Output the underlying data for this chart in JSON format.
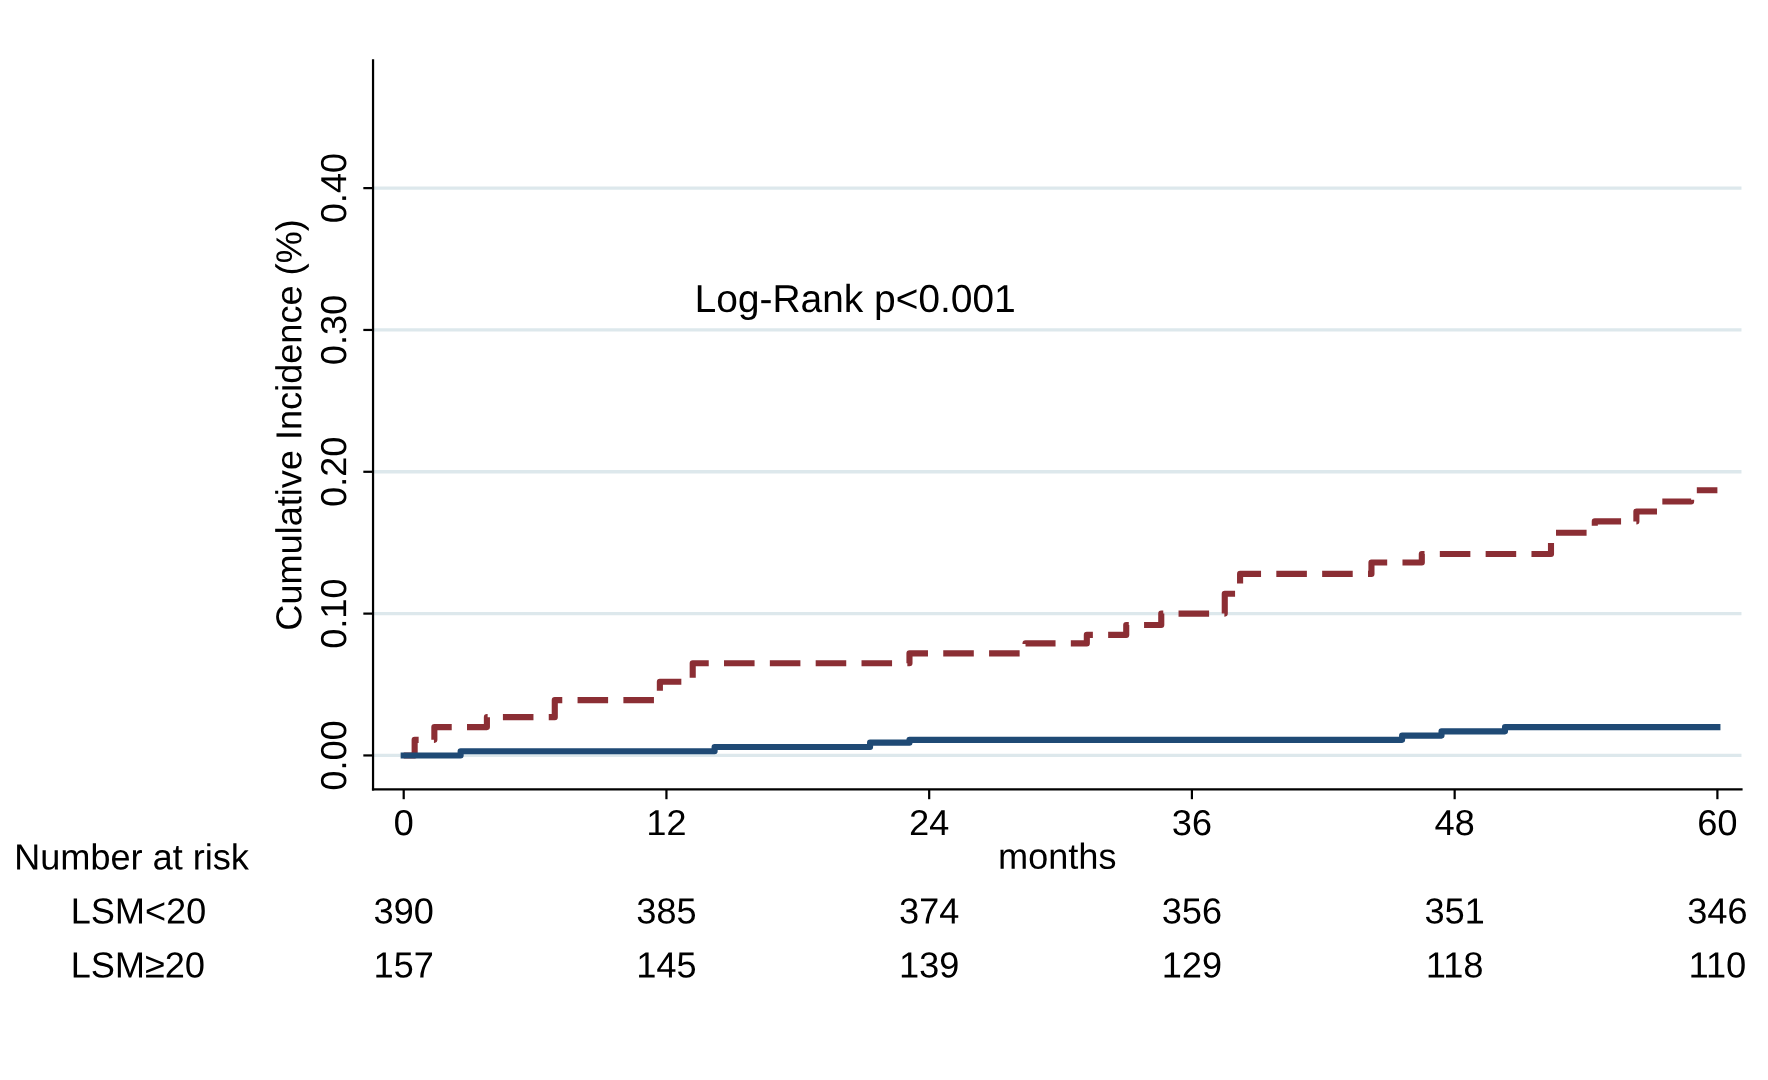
{
  "chart_data": {
    "type": "step",
    "xlabel": "months",
    "ylabel": "Cumulative Incidence (%)",
    "xlim": [
      -1.4,
      61.1
    ],
    "ylim": [
      -0.024,
      0.49
    ],
    "xticks": [
      0,
      12,
      24,
      36,
      48,
      60
    ],
    "yticks": [
      {
        "value": 0,
        "label": "0.00"
      },
      {
        "value": 0.1,
        "label": "0.10"
      },
      {
        "value": 0.2,
        "label": "0.20"
      },
      {
        "value": 0.3,
        "label": "0.30"
      },
      {
        "value": 0.4,
        "label": "0.40"
      }
    ],
    "grid": "y",
    "legend": false,
    "series": [
      {
        "color": "#8b2e34",
        "line_style": "dashed",
        "x": [
          0,
          0.5,
          1.4,
          3.8,
          6.9,
          11.7,
          13.2,
          23.1,
          28.4,
          31.2,
          33.0,
          34.6,
          37.5,
          38.2,
          44.2,
          46.5,
          52.4,
          54.4,
          56.3,
          57.3,
          58.8,
          60
        ],
        "values": [
          0,
          0.011,
          0.02,
          0.027,
          0.039,
          0.052,
          0.065,
          0.072,
          0.079,
          0.085,
          0.092,
          0.1,
          0.114,
          0.128,
          0.136,
          0.142,
          0.157,
          0.165,
          0.172,
          0.179,
          0.187,
          0.187
        ]
      },
      {
        "color": "#1f4a75",
        "line_style": "solid",
        "x": [
          0,
          2.6,
          14.2,
          21.3,
          23.1,
          45.6,
          47.4,
          50.3,
          60
        ],
        "values": [
          0,
          0.003,
          0.006,
          0.009,
          0.011,
          0.014,
          0.017,
          0.02,
          0.02
        ]
      }
    ],
    "annotations": [
      "Log-Rank p<0.001",
      "Number at risk",
      "LSM<20",
      "390",
      "385",
      "374",
      "356",
      "351",
      "346",
      "LSM≥20",
      "157",
      "145",
      "139",
      "129",
      "118",
      "110"
    ]
  }
}
